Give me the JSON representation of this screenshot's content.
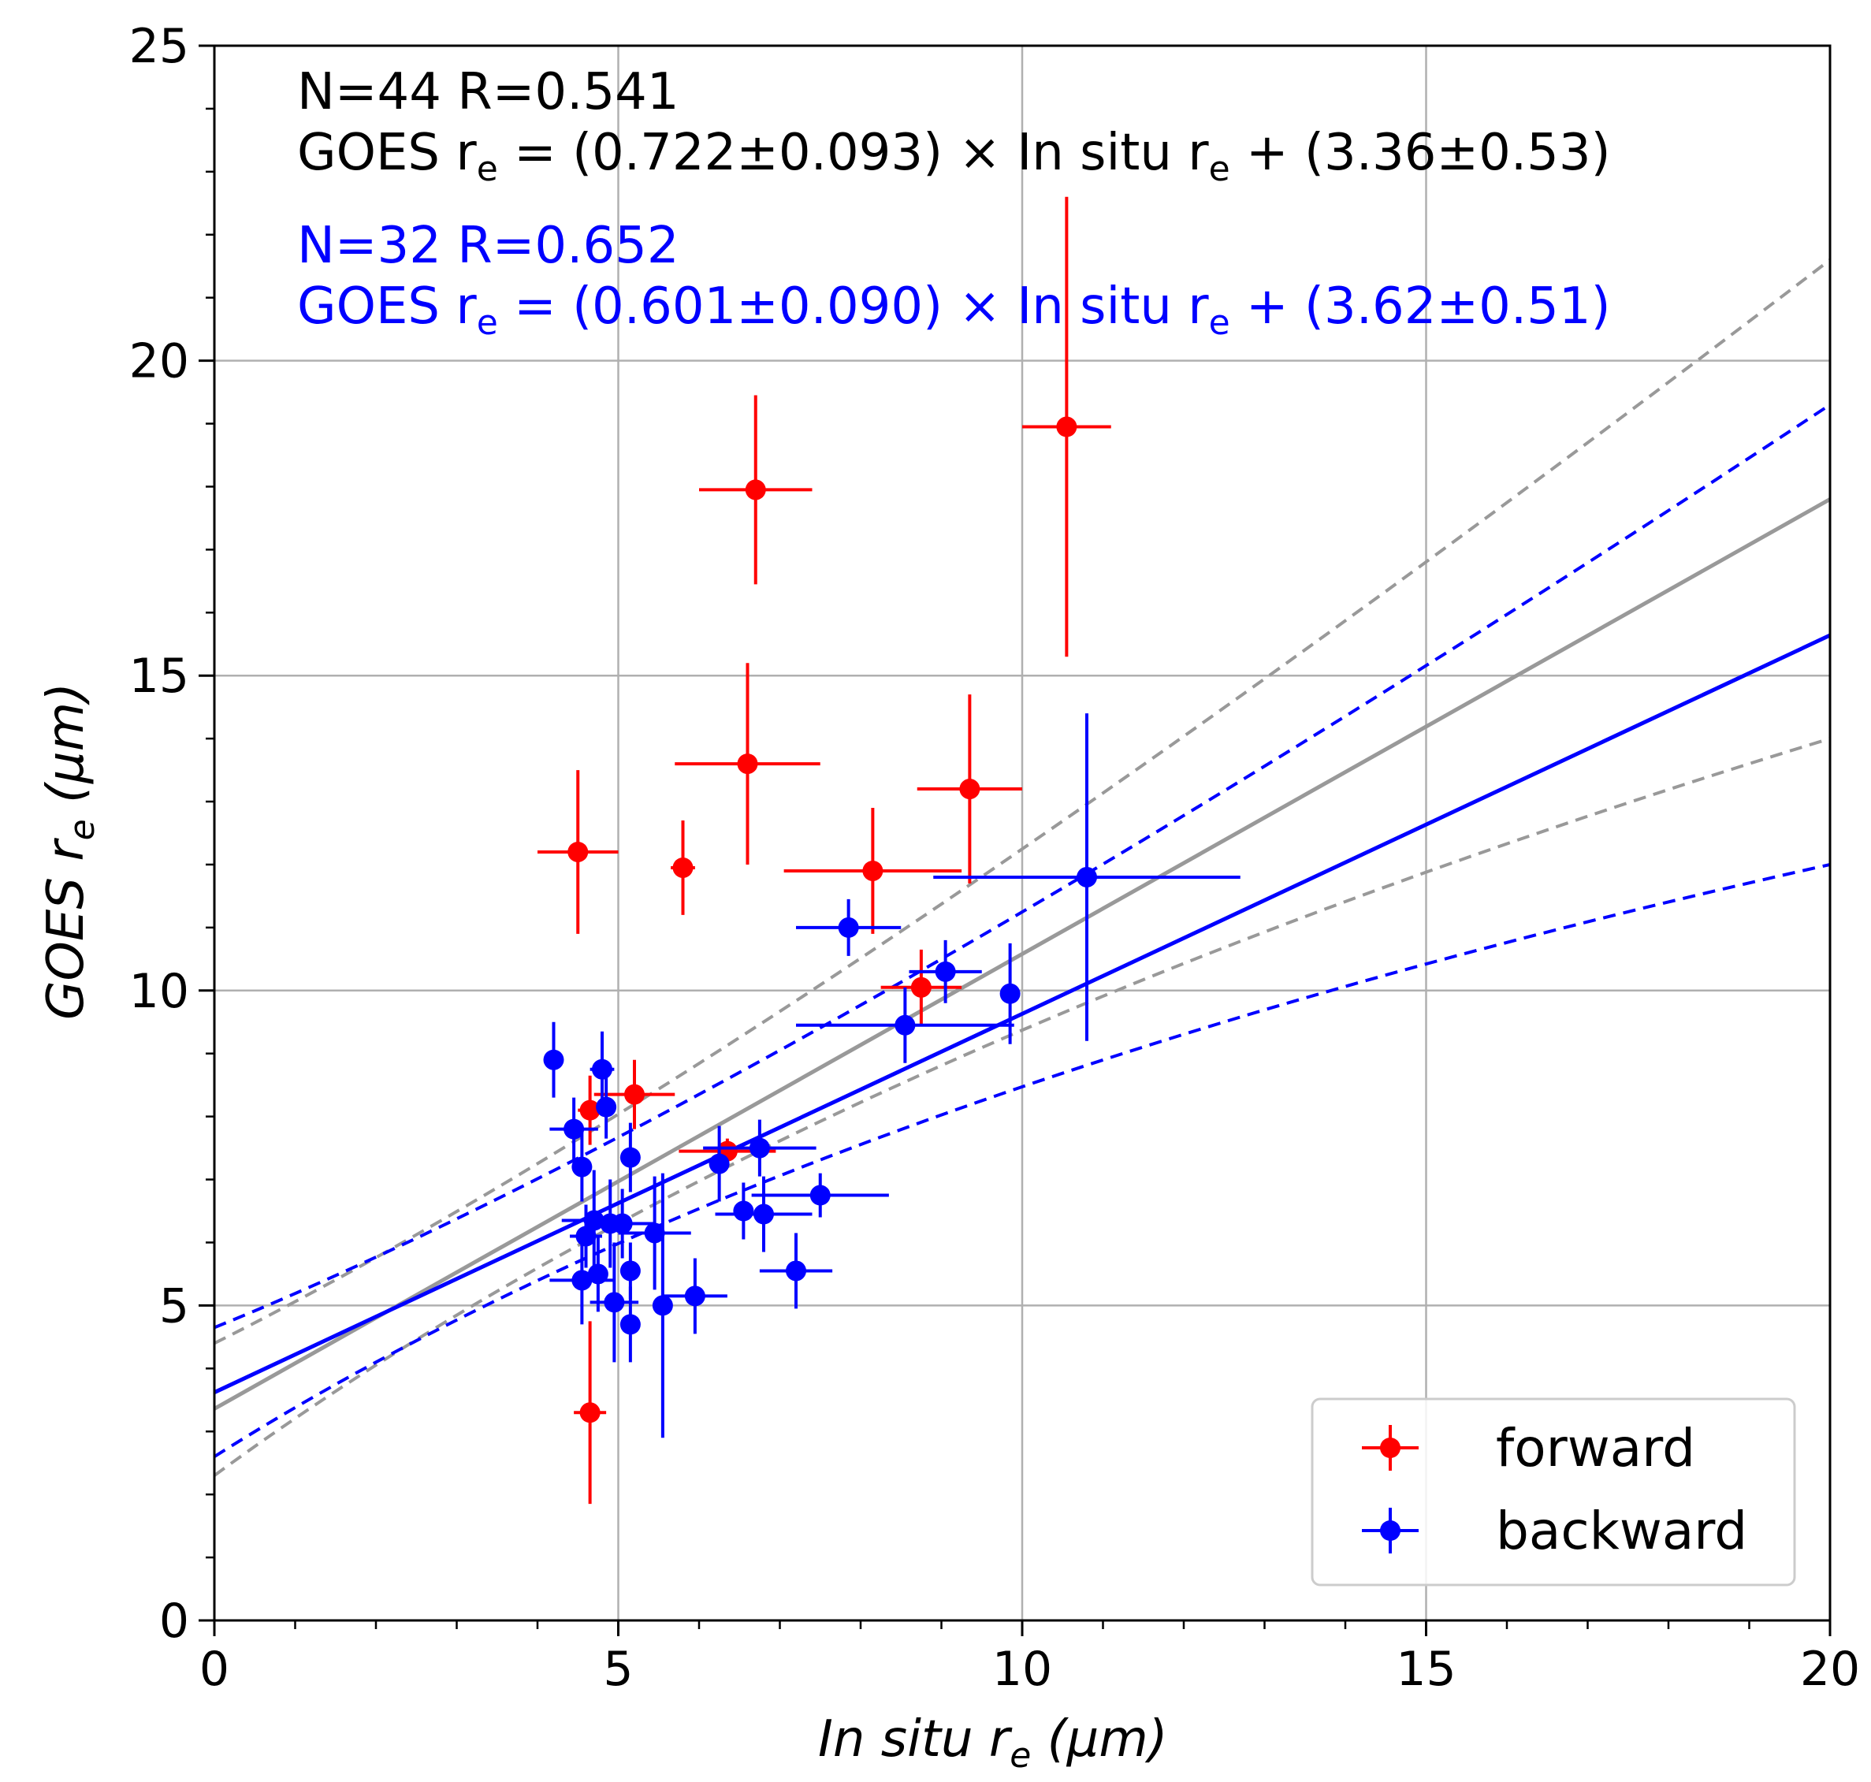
{
  "chart_data": {
    "type": "scatter",
    "xlabel": "In situ r",
    "xlabel_sub": "e",
    "xlabel_unit": "(μm)",
    "ylabel": "GOES r",
    "ylabel_sub": "e",
    "ylabel_unit": "(μm)",
    "xlim": [
      0,
      20
    ],
    "ylim": [
      0,
      25
    ],
    "xticks": [
      0,
      5,
      10,
      15,
      20
    ],
    "yticks": [
      0,
      5,
      10,
      15,
      20,
      25
    ],
    "xtick_labels": [
      "0",
      "5",
      "10",
      "15",
      "20"
    ],
    "ytick_labels": [
      "0",
      "5",
      "10",
      "15",
      "20",
      "25"
    ],
    "x_minor_step": 1,
    "y_minor_step": 1,
    "grid": true,
    "legend_position": "lower-right",
    "annotations": {
      "forward_stats": "N=44    R=0.541",
      "forward_eq_prefix": "GOES r",
      "forward_eq_middle": " = (0.722±0.093) × In situ r",
      "forward_eq_suffix": " + (3.36±0.53)",
      "backward_stats": "N=32    R=0.652",
      "backward_eq_prefix": "GOES r",
      "backward_eq_middle": " = (0.601±0.090) × In situ r",
      "backward_eq_suffix": " + (3.62±0.51)",
      "subscript": "e"
    },
    "series": [
      {
        "name": "forward",
        "color": "#ff0000",
        "fit": {
          "slope": 0.722,
          "intercept": 3.36,
          "color": "#999999",
          "band_upper_at_0": 4.4,
          "band_upper_at_20": 21.6,
          "band_lower_at_0": 2.3,
          "band_lower_at_20": 14.0
        },
        "points": [
          {
            "x": 10.55,
            "y": 18.95,
            "xerr": 0.55,
            "yerr_lo": 3.65,
            "yerr_hi": 3.65
          },
          {
            "x": 6.7,
            "y": 17.95,
            "xerr": 0.7,
            "yerr_lo": 1.5,
            "yerr_hi": 1.5
          },
          {
            "x": 6.6,
            "y": 13.6,
            "xerr": 0.9,
            "yerr_lo": 1.6,
            "yerr_hi": 1.6
          },
          {
            "x": 9.35,
            "y": 13.2,
            "xerr": 0.65,
            "yerr_lo": 1.5,
            "yerr_hi": 1.5
          },
          {
            "x": 4.5,
            "y": 12.2,
            "xerr": 0.5,
            "yerr_lo": 1.3,
            "yerr_hi": 1.3
          },
          {
            "x": 5.8,
            "y": 11.95,
            "xerr": 0.15,
            "yerr_lo": 0.75,
            "yerr_hi": 0.75
          },
          {
            "x": 8.15,
            "y": 11.9,
            "xerr": 1.1,
            "yerr_lo": 1.0,
            "yerr_hi": 1.0
          },
          {
            "x": 8.75,
            "y": 10.05,
            "xerr": 0.5,
            "yerr_lo": 0.6,
            "yerr_hi": 0.6
          },
          {
            "x": 5.2,
            "y": 8.35,
            "xerr": 0.5,
            "yerr_lo": 0.55,
            "yerr_hi": 0.55
          },
          {
            "x": 4.65,
            "y": 8.1,
            "xerr": 0.15,
            "yerr_lo": 0.55,
            "yerr_hi": 0.55
          },
          {
            "x": 6.35,
            "y": 7.45,
            "xerr": 0.6,
            "yerr_lo": 0.2,
            "yerr_hi": 0.2
          },
          {
            "x": 4.65,
            "y": 3.3,
            "xerr": 0.2,
            "yerr_lo": 1.45,
            "yerr_hi": 1.45
          }
        ]
      },
      {
        "name": "backward",
        "color": "#0000ff",
        "fit": {
          "slope": 0.601,
          "intercept": 3.62,
          "color": "#0000ff",
          "band_upper_at_0": 4.65,
          "band_upper_at_20": 19.3,
          "band_lower_at_0": 2.6,
          "band_lower_at_20": 12.0
        },
        "points": [
          {
            "x": 10.8,
            "y": 11.8,
            "xerr": 1.9,
            "yerr_lo": 2.6,
            "yerr_hi": 2.6
          },
          {
            "x": 7.85,
            "y": 11.0,
            "xerr": 0.65,
            "yerr_lo": 0.45,
            "yerr_hi": 0.45
          },
          {
            "x": 9.05,
            "y": 10.3,
            "xerr": 0.45,
            "yerr_lo": 0.5,
            "yerr_hi": 0.5
          },
          {
            "x": 9.85,
            "y": 9.95,
            "xerr": 0.0,
            "yerr_lo": 0.8,
            "yerr_hi": 0.8
          },
          {
            "x": 8.55,
            "y": 9.45,
            "xerr": 1.35,
            "yerr_lo": 0.6,
            "yerr_hi": 0.6
          },
          {
            "x": 4.2,
            "y": 8.9,
            "xerr": 0.0,
            "yerr_lo": 0.6,
            "yerr_hi": 0.6
          },
          {
            "x": 4.8,
            "y": 8.75,
            "xerr": 0.15,
            "yerr_lo": 0.6,
            "yerr_hi": 0.6
          },
          {
            "x": 4.85,
            "y": 8.15,
            "xerr": 0.0,
            "yerr_lo": 0.5,
            "yerr_hi": 0.5
          },
          {
            "x": 4.45,
            "y": 7.8,
            "xerr": 0.3,
            "yerr_lo": 0.5,
            "yerr_hi": 0.5
          },
          {
            "x": 6.75,
            "y": 7.5,
            "xerr": 0.7,
            "yerr_lo": 0.45,
            "yerr_hi": 0.45
          },
          {
            "x": 5.15,
            "y": 7.35,
            "xerr": 0.0,
            "yerr_lo": 0.55,
            "yerr_hi": 0.55
          },
          {
            "x": 6.25,
            "y": 7.25,
            "xerr": 0.0,
            "yerr_lo": 0.6,
            "yerr_hi": 0.6
          },
          {
            "x": 4.55,
            "y": 7.2,
            "xerr": 0.0,
            "yerr_lo": 0.55,
            "yerr_hi": 0.55
          },
          {
            "x": 7.5,
            "y": 6.75,
            "xerr": 0.85,
            "yerr_lo": 0.35,
            "yerr_hi": 0.35
          },
          {
            "x": 6.55,
            "y": 6.5,
            "xerr": 0.0,
            "yerr_lo": 0.45,
            "yerr_hi": 0.45
          },
          {
            "x": 6.8,
            "y": 6.45,
            "xerr": 0.6,
            "yerr_lo": 0.6,
            "yerr_hi": 0.6
          },
          {
            "x": 4.7,
            "y": 6.35,
            "xerr": 0.4,
            "yerr_lo": 0.8,
            "yerr_hi": 0.8
          },
          {
            "x": 4.9,
            "y": 6.3,
            "xerr": 0.0,
            "yerr_lo": 0.7,
            "yerr_hi": 0.7
          },
          {
            "x": 5.05,
            "y": 6.3,
            "xerr": 0.4,
            "yerr_lo": 0.55,
            "yerr_hi": 0.55
          },
          {
            "x": 5.45,
            "y": 6.15,
            "xerr": 0.45,
            "yerr_lo": 0.9,
            "yerr_hi": 0.9
          },
          {
            "x": 4.6,
            "y": 6.1,
            "xerr": 0.2,
            "yerr_lo": 0.5,
            "yerr_hi": 0.5
          },
          {
            "x": 7.2,
            "y": 5.55,
            "xerr": 0.45,
            "yerr_lo": 0.6,
            "yerr_hi": 0.6
          },
          {
            "x": 5.15,
            "y": 5.55,
            "xerr": 0.0,
            "yerr_lo": 0.45,
            "yerr_hi": 0.45
          },
          {
            "x": 4.75,
            "y": 5.5,
            "xerr": 0.0,
            "yerr_lo": 0.6,
            "yerr_hi": 0.6
          },
          {
            "x": 4.55,
            "y": 5.4,
            "xerr": 0.4,
            "yerr_lo": 0.7,
            "yerr_hi": 0.7
          },
          {
            "x": 5.95,
            "y": 5.15,
            "xerr": 0.4,
            "yerr_lo": 0.6,
            "yerr_hi": 0.6
          },
          {
            "x": 4.95,
            "y": 5.05,
            "xerr": 0.3,
            "yerr_lo": 0.95,
            "yerr_hi": 0.95
          },
          {
            "x": 5.55,
            "y": 5.0,
            "xerr": 0.0,
            "yerr_lo": 2.1,
            "yerr_hi": 2.1
          },
          {
            "x": 5.15,
            "y": 4.7,
            "xerr": 0.0,
            "yerr_lo": 0.6,
            "yerr_hi": 0.6
          }
        ]
      }
    ]
  }
}
